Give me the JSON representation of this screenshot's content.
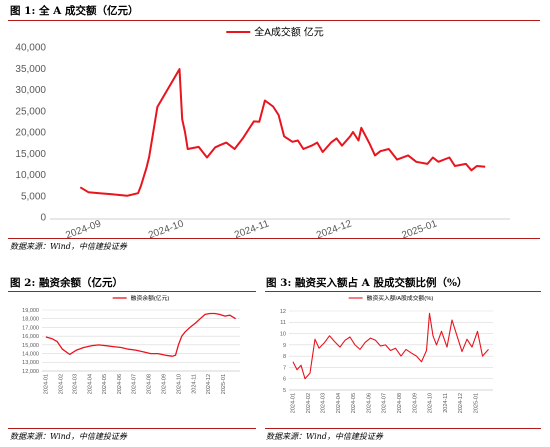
{
  "figures": [
    {
      "title": "图 1: 全 A 成交额（亿元）",
      "source": "数据来源：Wind，中信建投证券"
    },
    {
      "title": "图 2:  融资余额（亿元）",
      "source": "数据来源：Wind，中信建投证券"
    },
    {
      "title": "图 3: 融资买入额占 A 股成交额比例（%）",
      "source": "数据来源：Wind，中信建投证券"
    }
  ],
  "colors": {
    "line": "#e8141e",
    "rule": "#b31a1a",
    "grid": "#d9d9d9",
    "tick": "#595959"
  },
  "chart_data": [
    {
      "type": "line",
      "series": [
        {
          "name": "全A成交额 亿元",
          "x": [
            "2024-09-02",
            "2024-09-05",
            "2024-09-09",
            "2024-09-13",
            "2024-09-19",
            "2024-09-23",
            "2024-09-24",
            "2024-09-26",
            "2024-09-27",
            "2024-09-30",
            "2024-10-08",
            "2024-10-09",
            "2024-10-10",
            "2024-10-11",
            "2024-10-15",
            "2024-10-18",
            "2024-10-21",
            "2024-10-23",
            "2024-10-25",
            "2024-10-28",
            "2024-10-31",
            "2024-11-04",
            "2024-11-06",
            "2024-11-08",
            "2024-11-11",
            "2024-11-13",
            "2024-11-15",
            "2024-11-18",
            "2024-11-20",
            "2024-11-22",
            "2024-11-25",
            "2024-11-27",
            "2024-11-29",
            "2024-12-02",
            "2024-12-04",
            "2024-12-06",
            "2024-12-09",
            "2024-12-10",
            "2024-12-12",
            "2024-12-13",
            "2024-12-16",
            "2024-12-18",
            "2024-12-20",
            "2024-12-23",
            "2024-12-26",
            "2024-12-30",
            "2025-01-02",
            "2025-01-06",
            "2025-01-08",
            "2025-01-10",
            "2025-01-14",
            "2025-01-16",
            "2025-01-20",
            "2025-01-22",
            "2025-01-24",
            "2025-01-27"
          ],
          "values": [
            7000,
            5800,
            5600,
            5400,
            5000,
            5600,
            7300,
            11500,
            14200,
            25900,
            34800,
            23000,
            20000,
            16000,
            16500,
            14000,
            16400,
            17000,
            17500,
            16000,
            18500,
            22500,
            22400,
            27400,
            26000,
            24000,
            19000,
            17700,
            18000,
            16000,
            16800,
            17500,
            15300,
            17500,
            18500,
            16800,
            19000,
            20000,
            18000,
            21000,
            17300,
            14500,
            15500,
            16000,
            13500,
            14500,
            13000,
            12500,
            14000,
            13000,
            14000,
            12000,
            12500,
            11000,
            12000,
            11800
          ]
        }
      ],
      "x_ticks": [
        "2024-09",
        "2024-10",
        "2024-11",
        "2024-12",
        "2025-01"
      ],
      "ylim": [
        0,
        40000
      ],
      "y_ticks": [
        "0",
        "5,000",
        "10,000",
        "15,000",
        "20,000",
        "25,000",
        "30,000",
        "35,000",
        "40,000"
      ],
      "legend": "top-center",
      "grid": false
    },
    {
      "type": "line",
      "series": [
        {
          "name": "融资余额(亿元)",
          "x": [
            "2024-01-02",
            "2024-01-15",
            "2024-01-25",
            "2024-02-05",
            "2024-02-20",
            "2024-03-05",
            "2024-03-20",
            "2024-04-05",
            "2024-04-20",
            "2024-05-05",
            "2024-05-20",
            "2024-06-05",
            "2024-06-20",
            "2024-07-05",
            "2024-07-20",
            "2024-08-05",
            "2024-08-20",
            "2024-09-05",
            "2024-09-18",
            "2024-09-25",
            "2024-10-01",
            "2024-10-08",
            "2024-10-15",
            "2024-10-25",
            "2024-11-05",
            "2024-11-15",
            "2024-11-25",
            "2024-12-05",
            "2024-12-15",
            "2024-12-25",
            "2025-01-05",
            "2025-01-15",
            "2025-01-27"
          ],
          "values": [
            15900,
            15700,
            15400,
            14500,
            13900,
            14400,
            14700,
            14900,
            15000,
            14900,
            14800,
            14700,
            14500,
            14400,
            14200,
            14000,
            14000,
            13800,
            13700,
            13800,
            15000,
            16000,
            16500,
            17000,
            17500,
            18000,
            18500,
            18600,
            18600,
            18500,
            18300,
            18400,
            18000
          ]
        }
      ],
      "x_ticks": [
        "2024-01",
        "2024-02",
        "2024-03",
        "2024-04",
        "2024-05",
        "2024-06",
        "2024-07",
        "2024-08",
        "2024-09",
        "2024-10",
        "2024-11",
        "2024-12",
        "2025-01"
      ],
      "ylim": [
        12000,
        19000
      ],
      "y_ticks": [
        "12,000",
        "13,000",
        "14,000",
        "15,000",
        "16,000",
        "17,000",
        "18,000",
        "19,000"
      ],
      "legend": "top-center",
      "grid": true
    },
    {
      "type": "line",
      "series": [
        {
          "name": "融资买入额/A股成交额(%)",
          "x": [
            "2024-01-02",
            "2024-01-10",
            "2024-01-18",
            "2024-01-26",
            "2024-02-05",
            "2024-02-15",
            "2024-02-23",
            "2024-03-05",
            "2024-03-15",
            "2024-03-25",
            "2024-04-05",
            "2024-04-15",
            "2024-04-25",
            "2024-05-05",
            "2024-05-15",
            "2024-05-25",
            "2024-06-05",
            "2024-06-15",
            "2024-06-25",
            "2024-07-05",
            "2024-07-15",
            "2024-07-25",
            "2024-08-05",
            "2024-08-15",
            "2024-08-25",
            "2024-09-05",
            "2024-09-15",
            "2024-09-25",
            "2024-10-01",
            "2024-10-08",
            "2024-10-15",
            "2024-10-25",
            "2024-11-05",
            "2024-11-15",
            "2024-11-25",
            "2024-12-05",
            "2024-12-15",
            "2024-12-25",
            "2025-01-05",
            "2025-01-15",
            "2025-01-27"
          ],
          "values": [
            7.5,
            6.8,
            7.2,
            6.0,
            6.5,
            9.5,
            8.7,
            9.2,
            9.8,
            9.3,
            8.8,
            9.4,
            9.7,
            9.0,
            8.6,
            9.2,
            9.6,
            9.4,
            8.9,
            9.0,
            8.5,
            8.7,
            8.0,
            8.6,
            8.3,
            8.0,
            7.5,
            8.5,
            11.8,
            9.8,
            9.0,
            10.2,
            8.8,
            11.2,
            9.8,
            8.4,
            9.5,
            8.8,
            10.2,
            8.0,
            8.6
          ]
        }
      ],
      "x_ticks": [
        "2024-01",
        "2024-02",
        "2024-03",
        "2024-04",
        "2024-05",
        "2024-06",
        "2024-07",
        "2024-08",
        "2024-09",
        "2024-10",
        "2024-11",
        "2024-12",
        "2025-01"
      ],
      "ylim": [
        5,
        12
      ],
      "y_ticks": [
        "5",
        "6",
        "7",
        "8",
        "9",
        "10",
        "11",
        "12"
      ],
      "legend": "top-center",
      "grid": true
    }
  ]
}
